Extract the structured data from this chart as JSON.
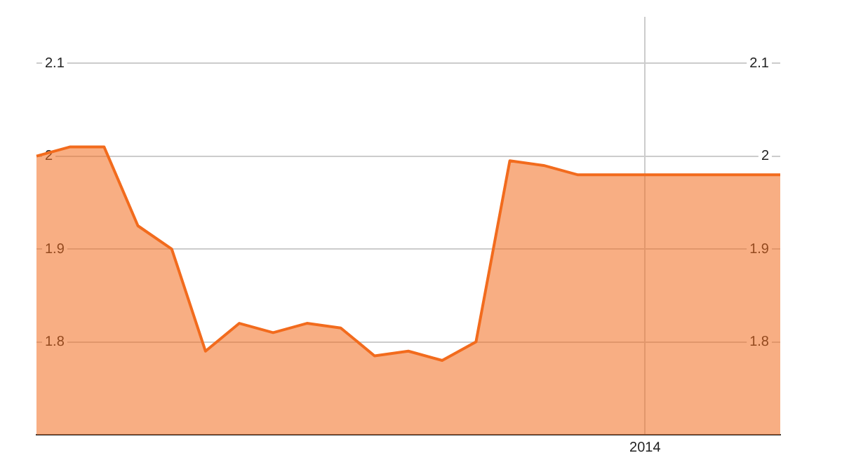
{
  "chart_data": {
    "type": "area",
    "categories": [
      null,
      null,
      null,
      null,
      null,
      null,
      null,
      null,
      null,
      null,
      null,
      null,
      null,
      null,
      null,
      null,
      null,
      null,
      "2014",
      null,
      null,
      null,
      null
    ],
    "series": [
      {
        "color": "#f26b1d",
        "values": [
          2.0,
          2.01,
          2.01,
          1.925,
          1.9,
          1.79,
          1.82,
          1.81,
          1.82,
          1.815,
          1.785,
          1.79,
          1.78,
          1.8,
          1.995,
          1.99,
          1.98,
          1.98,
          1.98,
          1.98,
          1.98,
          1.98,
          1.98
        ]
      }
    ],
    "ylim": [
      1.7,
      2.15
    ],
    "yticks": [
      {
        "value": 1.8,
        "label": "1.8"
      },
      {
        "value": 1.9,
        "label": "1.9"
      },
      {
        "value": 2.0,
        "label": "2"
      },
      {
        "value": 2.1,
        "label": "2.1"
      }
    ],
    "y2lim": [
      1.7,
      2.15
    ],
    "y2ticks": [
      {
        "value": 1.8,
        "label": "1.8"
      },
      {
        "value": 1.9,
        "label": "1.9"
      },
      {
        "value": 2.0,
        "label": "2"
      },
      {
        "value": 2.1,
        "label": "2.1"
      }
    ],
    "grid": true,
    "legend": false,
    "marker": "none",
    "line_style": "solid"
  }
}
